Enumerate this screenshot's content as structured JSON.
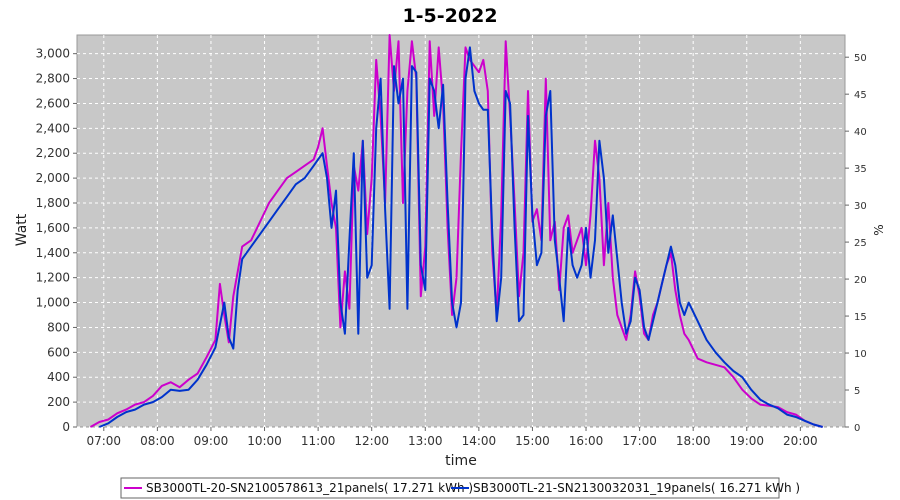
{
  "chart_data": {
    "type": "line",
    "title": "1-5-2022",
    "xlabel": "time",
    "ylabel": "Watt",
    "y2label": "%",
    "xlim": [
      "06:30",
      "20:50"
    ],
    "ylim": [
      0,
      3150
    ],
    "y2lim": [
      0,
      53
    ],
    "x_ticks": [
      "07:00",
      "08:00",
      "09:00",
      "10:00",
      "11:00",
      "12:00",
      "13:00",
      "14:00",
      "15:00",
      "16:00",
      "17:00",
      "18:00",
      "19:00",
      "20:00"
    ],
    "y_ticks": [
      "0",
      "200",
      "400",
      "600",
      "800",
      "1,000",
      "1,200",
      "1,400",
      "1,600",
      "1,800",
      "2,000",
      "2,200",
      "2,400",
      "2,600",
      "2,800",
      "3,000"
    ],
    "y2_ticks": [
      "0",
      "5",
      "10",
      "15",
      "20",
      "25",
      "30",
      "35",
      "40",
      "45",
      "50"
    ],
    "grid": true,
    "legend_position": "bottom",
    "colors": {
      "plot_bg": "#c8c8c8",
      "grid": "#ffffff",
      "series1": "#cc00cc",
      "series2": "#0033cc"
    },
    "series": [
      {
        "name": "SB3000TL-20-SN2100578613_21panels( 17.271 kWh )",
        "color": "#cc00cc",
        "points": [
          [
            "06:45",
            0
          ],
          [
            "06:55",
            40
          ],
          [
            "07:05",
            60
          ],
          [
            "07:15",
            110
          ],
          [
            "07:25",
            140
          ],
          [
            "07:35",
            180
          ],
          [
            "07:45",
            200
          ],
          [
            "07:55",
            250
          ],
          [
            "08:05",
            330
          ],
          [
            "08:15",
            360
          ],
          [
            "08:25",
            320
          ],
          [
            "08:35",
            380
          ],
          [
            "08:45",
            430
          ],
          [
            "08:55",
            560
          ],
          [
            "09:05",
            700
          ],
          [
            "09:10",
            1150
          ],
          [
            "09:15",
            900
          ],
          [
            "09:20",
            680
          ],
          [
            "09:25",
            1050
          ],
          [
            "09:35",
            1450
          ],
          [
            "09:45",
            1500
          ],
          [
            "09:55",
            1650
          ],
          [
            "10:05",
            1800
          ],
          [
            "10:15",
            1900
          ],
          [
            "10:25",
            2000
          ],
          [
            "10:35",
            2050
          ],
          [
            "10:45",
            2100
          ],
          [
            "10:55",
            2150
          ],
          [
            "11:00",
            2250
          ],
          [
            "11:05",
            2400
          ],
          [
            "11:10",
            2100
          ],
          [
            "11:15",
            1800
          ],
          [
            "11:20",
            1600
          ],
          [
            "11:25",
            800
          ],
          [
            "11:30",
            1250
          ],
          [
            "11:35",
            950
          ],
          [
            "11:40",
            2100
          ],
          [
            "11:45",
            1900
          ],
          [
            "11:50",
            2300
          ],
          [
            "11:55",
            1550
          ],
          [
            "12:00",
            2000
          ],
          [
            "12:05",
            2950
          ],
          [
            "12:10",
            2500
          ],
          [
            "12:15",
            1800
          ],
          [
            "12:20",
            3150
          ],
          [
            "12:25",
            2700
          ],
          [
            "12:30",
            3100
          ],
          [
            "12:35",
            1800
          ],
          [
            "12:40",
            2700
          ],
          [
            "12:45",
            3100
          ],
          [
            "12:50",
            2800
          ],
          [
            "12:55",
            1050
          ],
          [
            "13:00",
            1450
          ],
          [
            "13:05",
            3100
          ],
          [
            "13:10",
            2500
          ],
          [
            "13:15",
            3050
          ],
          [
            "13:20",
            2600
          ],
          [
            "13:25",
            1600
          ],
          [
            "13:30",
            900
          ],
          [
            "13:35",
            1200
          ],
          [
            "13:40",
            2200
          ],
          [
            "13:45",
            3050
          ],
          [
            "13:50",
            2950
          ],
          [
            "13:55",
            2900
          ],
          [
            "14:00",
            2850
          ],
          [
            "14:05",
            2950
          ],
          [
            "14:10",
            2700
          ],
          [
            "14:15",
            1400
          ],
          [
            "14:20",
            900
          ],
          [
            "14:25",
            1700
          ],
          [
            "14:30",
            3100
          ],
          [
            "14:35",
            2500
          ],
          [
            "14:40",
            1800
          ],
          [
            "14:45",
            1050
          ],
          [
            "14:50",
            1400
          ],
          [
            "14:55",
            2700
          ],
          [
            "15:00",
            1650
          ],
          [
            "15:05",
            1750
          ],
          [
            "15:10",
            1500
          ],
          [
            "15:15",
            2800
          ],
          [
            "15:20",
            1500
          ],
          [
            "15:25",
            1650
          ],
          [
            "15:30",
            1100
          ],
          [
            "15:35",
            1600
          ],
          [
            "15:40",
            1700
          ],
          [
            "15:45",
            1400
          ],
          [
            "15:50",
            1500
          ],
          [
            "15:55",
            1600
          ],
          [
            "16:00",
            1300
          ],
          [
            "16:05",
            1700
          ],
          [
            "16:10",
            2300
          ],
          [
            "16:15",
            2000
          ],
          [
            "16:20",
            1300
          ],
          [
            "16:25",
            1800
          ],
          [
            "16:30",
            1200
          ],
          [
            "16:35",
            900
          ],
          [
            "16:40",
            800
          ],
          [
            "16:45",
            700
          ],
          [
            "16:50",
            900
          ],
          [
            "16:55",
            1250
          ],
          [
            "17:00",
            1050
          ],
          [
            "17:05",
            750
          ],
          [
            "17:10",
            700
          ],
          [
            "17:15",
            900
          ],
          [
            "17:20",
            1000
          ],
          [
            "17:25",
            1150
          ],
          [
            "17:30",
            1300
          ],
          [
            "17:35",
            1400
          ],
          [
            "17:40",
            1100
          ],
          [
            "17:45",
            900
          ],
          [
            "17:50",
            750
          ],
          [
            "17:55",
            700
          ],
          [
            "18:05",
            550
          ],
          [
            "18:15",
            520
          ],
          [
            "18:25",
            500
          ],
          [
            "18:35",
            480
          ],
          [
            "18:45",
            400
          ],
          [
            "18:55",
            300
          ],
          [
            "19:05",
            230
          ],
          [
            "19:15",
            180
          ],
          [
            "19:25",
            170
          ],
          [
            "19:35",
            160
          ],
          [
            "19:45",
            120
          ],
          [
            "19:55",
            100
          ],
          [
            "20:05",
            50
          ],
          [
            "20:15",
            20
          ],
          [
            "20:25",
            0
          ]
        ]
      },
      {
        "name": "SB3000TL-21-SN2130032031_19panels( 16.271 kWh )",
        "color": "#0033cc",
        "points": [
          [
            "06:55",
            0
          ],
          [
            "07:05",
            30
          ],
          [
            "07:15",
            80
          ],
          [
            "07:25",
            120
          ],
          [
            "07:35",
            140
          ],
          [
            "07:45",
            180
          ],
          [
            "07:55",
            200
          ],
          [
            "08:05",
            240
          ],
          [
            "08:15",
            300
          ],
          [
            "08:25",
            290
          ],
          [
            "08:35",
            300
          ],
          [
            "08:45",
            380
          ],
          [
            "08:55",
            500
          ],
          [
            "09:05",
            640
          ],
          [
            "09:15",
            1000
          ],
          [
            "09:20",
            720
          ],
          [
            "09:25",
            630
          ],
          [
            "09:30",
            1100
          ],
          [
            "09:35",
            1350
          ],
          [
            "09:45",
            1450
          ],
          [
            "09:55",
            1550
          ],
          [
            "10:05",
            1650
          ],
          [
            "10:15",
            1750
          ],
          [
            "10:25",
            1850
          ],
          [
            "10:35",
            1950
          ],
          [
            "10:45",
            2000
          ],
          [
            "10:55",
            2100
          ],
          [
            "11:00",
            2150
          ],
          [
            "11:05",
            2200
          ],
          [
            "11:10",
            2000
          ],
          [
            "11:15",
            1600
          ],
          [
            "11:20",
            1900
          ],
          [
            "11:25",
            1000
          ],
          [
            "11:30",
            750
          ],
          [
            "11:35",
            1500
          ],
          [
            "11:40",
            2200
          ],
          [
            "11:45",
            750
          ],
          [
            "11:50",
            2300
          ],
          [
            "11:55",
            1200
          ],
          [
            "12:00",
            1300
          ],
          [
            "12:05",
            2400
          ],
          [
            "12:10",
            2800
          ],
          [
            "12:15",
            1750
          ],
          [
            "12:20",
            950
          ],
          [
            "12:25",
            2900
          ],
          [
            "12:30",
            2600
          ],
          [
            "12:35",
            2800
          ],
          [
            "12:40",
            950
          ],
          [
            "12:45",
            2900
          ],
          [
            "12:50",
            2850
          ],
          [
            "12:55",
            1300
          ],
          [
            "13:00",
            1100
          ],
          [
            "13:05",
            2800
          ],
          [
            "13:10",
            2700
          ],
          [
            "13:15",
            2400
          ],
          [
            "13:20",
            2750
          ],
          [
            "13:25",
            1800
          ],
          [
            "13:30",
            1000
          ],
          [
            "13:35",
            800
          ],
          [
            "13:40",
            1000
          ],
          [
            "13:45",
            2800
          ],
          [
            "13:50",
            3050
          ],
          [
            "13:55",
            2700
          ],
          [
            "14:00",
            2600
          ],
          [
            "14:05",
            2550
          ],
          [
            "14:10",
            2550
          ],
          [
            "14:15",
            1550
          ],
          [
            "14:20",
            850
          ],
          [
            "14:25",
            1200
          ],
          [
            "14:30",
            2700
          ],
          [
            "14:35",
            2600
          ],
          [
            "14:40",
            1600
          ],
          [
            "14:45",
            850
          ],
          [
            "14:50",
            900
          ],
          [
            "14:55",
            2500
          ],
          [
            "15:00",
            1700
          ],
          [
            "15:05",
            1300
          ],
          [
            "15:10",
            1400
          ],
          [
            "15:15",
            2500
          ],
          [
            "15:20",
            2700
          ],
          [
            "15:25",
            1500
          ],
          [
            "15:30",
            1200
          ],
          [
            "15:35",
            850
          ],
          [
            "15:40",
            1600
          ],
          [
            "15:45",
            1300
          ],
          [
            "15:50",
            1200
          ],
          [
            "15:55",
            1300
          ],
          [
            "16:00",
            1600
          ],
          [
            "16:05",
            1200
          ],
          [
            "16:10",
            1500
          ],
          [
            "16:15",
            2300
          ],
          [
            "16:20",
            2000
          ],
          [
            "16:25",
            1400
          ],
          [
            "16:30",
            1700
          ],
          [
            "16:35",
            1350
          ],
          [
            "16:40",
            1000
          ],
          [
            "16:45",
            750
          ],
          [
            "16:50",
            850
          ],
          [
            "16:55",
            1200
          ],
          [
            "17:00",
            1100
          ],
          [
            "17:05",
            800
          ],
          [
            "17:10",
            700
          ],
          [
            "17:15",
            850
          ],
          [
            "17:20",
            1000
          ],
          [
            "17:25",
            1150
          ],
          [
            "17:30",
            1300
          ],
          [
            "17:35",
            1450
          ],
          [
            "17:40",
            1300
          ],
          [
            "17:45",
            1000
          ],
          [
            "17:50",
            900
          ],
          [
            "17:55",
            1000
          ],
          [
            "18:05",
            850
          ],
          [
            "18:15",
            700
          ],
          [
            "18:25",
            600
          ],
          [
            "18:35",
            520
          ],
          [
            "18:45",
            450
          ],
          [
            "18:55",
            400
          ],
          [
            "19:05",
            300
          ],
          [
            "19:15",
            220
          ],
          [
            "19:25",
            180
          ],
          [
            "19:35",
            150
          ],
          [
            "19:45",
            100
          ],
          [
            "19:55",
            80
          ],
          [
            "20:05",
            50
          ],
          [
            "20:15",
            20
          ],
          [
            "20:25",
            0
          ]
        ]
      }
    ]
  }
}
